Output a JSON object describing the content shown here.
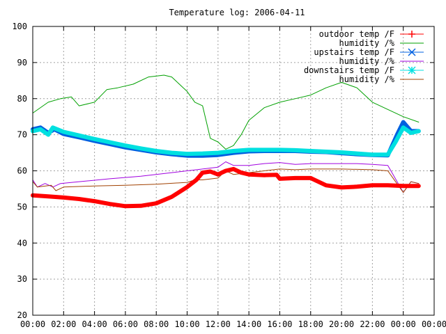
{
  "chart_data": {
    "type": "line",
    "title": "Temperature log: 2006-04-11",
    "xlabel": "",
    "ylabel": "",
    "xlim": [
      0,
      26
    ],
    "ylim": [
      20,
      100
    ],
    "grid": true,
    "legend_position": "top-right",
    "x_ticks": [
      {
        "value": 0,
        "label": "00:00"
      },
      {
        "value": 2,
        "label": "02:00"
      },
      {
        "value": 4,
        "label": "04:00"
      },
      {
        "value": 6,
        "label": "06:00"
      },
      {
        "value": 8,
        "label": "08:00"
      },
      {
        "value": 10,
        "label": "10:00"
      },
      {
        "value": 12,
        "label": "12:00"
      },
      {
        "value": 14,
        "label": "14:00"
      },
      {
        "value": 16,
        "label": "16:00"
      },
      {
        "value": 18,
        "label": "18:00"
      },
      {
        "value": 20,
        "label": "20:00"
      },
      {
        "value": 22,
        "label": "22:00"
      },
      {
        "value": 24,
        "label": "00:00"
      },
      {
        "value": 26,
        "label": "00:00"
      }
    ],
    "y_ticks": [
      20,
      30,
      40,
      50,
      60,
      70,
      80,
      90,
      100
    ],
    "series": [
      {
        "name": "outdoor temp /F",
        "color": "#ff0000",
        "marker": "plus",
        "thick": true,
        "points": [
          [
            0,
            53.2
          ],
          [
            1,
            52.9
          ],
          [
            2,
            52.6
          ],
          [
            3,
            52.2
          ],
          [
            4,
            51.6
          ],
          [
            5,
            50.8
          ],
          [
            6,
            50.2
          ],
          [
            7,
            50.3
          ],
          [
            8,
            51.0
          ],
          [
            9,
            52.8
          ],
          [
            10,
            55.5
          ],
          [
            10.6,
            57.5
          ],
          [
            11,
            59.5
          ],
          [
            11.5,
            59.8
          ],
          [
            12,
            59.0
          ],
          [
            12.5,
            60.0
          ],
          [
            13,
            60.5
          ],
          [
            13.5,
            59.5
          ],
          [
            14,
            59.0
          ],
          [
            15,
            58.8
          ],
          [
            15.8,
            58.9
          ],
          [
            16,
            57.8
          ],
          [
            17,
            58.0
          ],
          [
            18,
            58.0
          ],
          [
            19,
            56.0
          ],
          [
            20,
            55.4
          ],
          [
            21,
            55.6
          ],
          [
            22,
            56.0
          ],
          [
            23,
            56.0
          ],
          [
            24,
            55.8
          ],
          [
            25,
            55.8
          ]
        ]
      },
      {
        "name": "humidity /%",
        "color": "#00a000",
        "marker": "none",
        "thick": false,
        "points": [
          [
            0,
            76.0
          ],
          [
            1,
            79.0
          ],
          [
            1.8,
            80.0
          ],
          [
            2.5,
            80.5
          ],
          [
            3,
            78.0
          ],
          [
            4,
            79.0
          ],
          [
            4.8,
            82.5
          ],
          [
            5.5,
            83.0
          ],
          [
            6.5,
            84.0
          ],
          [
            7.5,
            86.0
          ],
          [
            8.5,
            86.5
          ],
          [
            9,
            86.0
          ],
          [
            10,
            82.0
          ],
          [
            10.5,
            79.0
          ],
          [
            11,
            78.0
          ],
          [
            11.5,
            69.0
          ],
          [
            12,
            68.0
          ],
          [
            12.5,
            66.0
          ],
          [
            13,
            67.0
          ],
          [
            13.5,
            70.0
          ],
          [
            14,
            74.0
          ],
          [
            15,
            77.5
          ],
          [
            16,
            79.0
          ],
          [
            17,
            80.0
          ],
          [
            18,
            81.0
          ],
          [
            19,
            83.0
          ],
          [
            20,
            84.5
          ],
          [
            21,
            83.0
          ],
          [
            22,
            79.0
          ],
          [
            23,
            77.0
          ],
          [
            24,
            75.0
          ],
          [
            25,
            73.5
          ]
        ]
      },
      {
        "name": "upstairs temp /F",
        "color": "#0060e0",
        "marker": "x",
        "thick": true,
        "points": [
          [
            0,
            71.5
          ],
          [
            0.5,
            72.0
          ],
          [
            1,
            70.5
          ],
          [
            1.4,
            71.5
          ],
          [
            2,
            70.2
          ],
          [
            3,
            69.3
          ],
          [
            4,
            68.3
          ],
          [
            5,
            67.4
          ],
          [
            6,
            66.5
          ],
          [
            7,
            65.8
          ],
          [
            8,
            65.1
          ],
          [
            9,
            64.6
          ],
          [
            10,
            64.2
          ],
          [
            11,
            64.2
          ],
          [
            12,
            64.4
          ],
          [
            13,
            65.0
          ],
          [
            14,
            65.4
          ],
          [
            15,
            65.5
          ],
          [
            16,
            65.5
          ],
          [
            17,
            65.5
          ],
          [
            18,
            65.3
          ],
          [
            19,
            65.2
          ],
          [
            20,
            64.9
          ],
          [
            21,
            64.6
          ],
          [
            22,
            64.4
          ],
          [
            23,
            64.3
          ],
          [
            23.6,
            70.0
          ],
          [
            24,
            73.5
          ],
          [
            24.5,
            71.0
          ],
          [
            25,
            71.0
          ]
        ]
      },
      {
        "name": "humidity /%",
        "color": "#a000e0",
        "marker": "none",
        "thick": false,
        "points": [
          [
            0,
            57.5
          ],
          [
            0.3,
            55.5
          ],
          [
            0.8,
            56.5
          ],
          [
            1.3,
            55.5
          ],
          [
            1.8,
            56.5
          ],
          [
            3,
            57.0
          ],
          [
            5,
            57.8
          ],
          [
            7,
            58.5
          ],
          [
            9,
            59.5
          ],
          [
            10,
            60.0
          ],
          [
            11,
            60.5
          ],
          [
            12,
            61.0
          ],
          [
            12.5,
            62.5
          ],
          [
            13,
            61.5
          ],
          [
            14,
            61.5
          ],
          [
            15,
            62.0
          ],
          [
            16,
            62.3
          ],
          [
            17,
            61.8
          ],
          [
            18,
            62.0
          ],
          [
            20,
            62.0
          ],
          [
            21,
            62.0
          ],
          [
            22,
            61.8
          ],
          [
            23,
            61.5
          ],
          [
            24,
            54.0
          ],
          [
            24.5,
            57.0
          ],
          [
            25,
            56.5
          ]
        ]
      },
      {
        "name": "downstairs temp /F",
        "color": "#00e0e0",
        "marker": "star",
        "thick": true,
        "points": [
          [
            0,
            71.0
          ],
          [
            0.5,
            71.5
          ],
          [
            1,
            70.0
          ],
          [
            1.3,
            72.0
          ],
          [
            2,
            70.8
          ],
          [
            3,
            69.8
          ],
          [
            4,
            68.8
          ],
          [
            5,
            67.9
          ],
          [
            6,
            67.0
          ],
          [
            7,
            66.2
          ],
          [
            8,
            65.5
          ],
          [
            9,
            65.0
          ],
          [
            10,
            64.7
          ],
          [
            11,
            64.8
          ],
          [
            12,
            65.0
          ],
          [
            13,
            65.5
          ],
          [
            14,
            65.8
          ],
          [
            15,
            65.8
          ],
          [
            16,
            65.8
          ],
          [
            17,
            65.7
          ],
          [
            18,
            65.5
          ],
          [
            19,
            65.3
          ],
          [
            20,
            65.1
          ],
          [
            21,
            64.8
          ],
          [
            22,
            64.5
          ],
          [
            23,
            64.5
          ],
          [
            23.5,
            68.0
          ],
          [
            24,
            72.0
          ],
          [
            24.5,
            70.5
          ],
          [
            25,
            71.0
          ]
        ]
      },
      {
        "name": "humidity /%",
        "color": "#a04000",
        "marker": "none",
        "thick": false,
        "points": [
          [
            0,
            57.0
          ],
          [
            0.3,
            55.5
          ],
          [
            1.2,
            56.0
          ],
          [
            1.5,
            54.5
          ],
          [
            2,
            55.5
          ],
          [
            4,
            55.8
          ],
          [
            6,
            56.0
          ],
          [
            8,
            56.3
          ],
          [
            10,
            56.8
          ],
          [
            10.5,
            57.5
          ],
          [
            11,
            57.5
          ],
          [
            12,
            58.0
          ],
          [
            12.5,
            60.0
          ],
          [
            13,
            59.0
          ],
          [
            14,
            59.5
          ],
          [
            15,
            60.0
          ],
          [
            16,
            60.5
          ],
          [
            17,
            60.3
          ],
          [
            18,
            60.5
          ],
          [
            20,
            60.5
          ],
          [
            22,
            60.3
          ],
          [
            23,
            60.0
          ],
          [
            24,
            54.0
          ],
          [
            24.5,
            57.0
          ],
          [
            25,
            56.5
          ]
        ]
      }
    ]
  }
}
